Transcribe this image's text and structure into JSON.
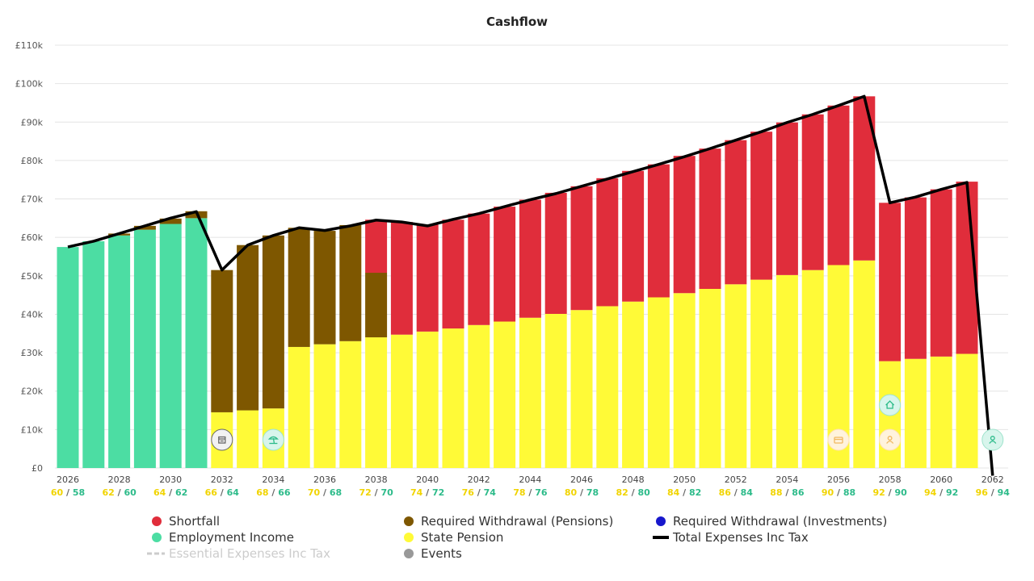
{
  "chart_data": {
    "type": "bar",
    "title": "Cashflow",
    "stacked": true,
    "ylim": [
      0,
      110000
    ],
    "y_ticks": [
      0,
      10000,
      20000,
      30000,
      40000,
      50000,
      60000,
      70000,
      80000,
      90000,
      100000,
      110000
    ],
    "y_tick_labels": [
      "£0",
      "£10k",
      "£20k",
      "£30k",
      "£40k",
      "£50k",
      "£60k",
      "£70k",
      "£80k",
      "£90k",
      "£100k",
      "£110k"
    ],
    "x": [
      2026,
      2027,
      2028,
      2029,
      2030,
      2031,
      2032,
      2033,
      2034,
      2035,
      2036,
      2037,
      2038,
      2039,
      2040,
      2041,
      2042,
      2043,
      2044,
      2045,
      2046,
      2047,
      2048,
      2049,
      2050,
      2051,
      2052,
      2053,
      2054,
      2055,
      2056,
      2057,
      2058,
      2059,
      2060,
      2061,
      2062
    ],
    "x_tick_labels": [
      {
        "year": "2026",
        "age1": "60",
        "age2": "58"
      },
      {
        "year": "2028",
        "age1": "62",
        "age2": "60"
      },
      {
        "year": "2030",
        "age1": "64",
        "age2": "62"
      },
      {
        "year": "2032",
        "age1": "66",
        "age2": "64"
      },
      {
        "year": "2034",
        "age1": "68",
        "age2": "66"
      },
      {
        "year": "2036",
        "age1": "70",
        "age2": "68"
      },
      {
        "year": "2038",
        "age1": "72",
        "age2": "70"
      },
      {
        "year": "2040",
        "age1": "74",
        "age2": "72"
      },
      {
        "year": "2042",
        "age1": "76",
        "age2": "74"
      },
      {
        "year": "2044",
        "age1": "78",
        "age2": "76"
      },
      {
        "year": "2046",
        "age1": "80",
        "age2": "78"
      },
      {
        "year": "2048",
        "age1": "82",
        "age2": "80"
      },
      {
        "year": "2050",
        "age1": "84",
        "age2": "82"
      },
      {
        "year": "2052",
        "age1": "86",
        "age2": "84"
      },
      {
        "year": "2054",
        "age1": "88",
        "age2": "86"
      },
      {
        "year": "2056",
        "age1": "90",
        "age2": "88"
      },
      {
        "year": "2058",
        "age1": "92",
        "age2": "90"
      },
      {
        "year": "2060",
        "age1": "94",
        "age2": "92"
      },
      {
        "year": "2062",
        "age1": "96",
        "age2": "94"
      }
    ],
    "age_separator": "/",
    "series": [
      {
        "name": "Employment Income",
        "color": "#4cdda3",
        "values": [
          57500,
          59000,
          60500,
          62000,
          63500,
          65000,
          0,
          0,
          0,
          0,
          0,
          0,
          0,
          0,
          0,
          0,
          0,
          0,
          0,
          0,
          0,
          0,
          0,
          0,
          0,
          0,
          0,
          0,
          0,
          0,
          0,
          0,
          0,
          0,
          0,
          0,
          0
        ]
      },
      {
        "name": "State Pension",
        "color": "#fffa37",
        "values": [
          0,
          0,
          0,
          0,
          0,
          0,
          14500,
          15000,
          15500,
          31500,
          32200,
          33000,
          34000,
          34700,
          35500,
          36300,
          37200,
          38100,
          39100,
          40100,
          41100,
          42100,
          43300,
          44400,
          45500,
          46600,
          47800,
          49000,
          50200,
          51500,
          52800,
          54000,
          27800,
          28400,
          29000,
          29700,
          0
        ]
      },
      {
        "name": "Required Withdrawal (Pensions)",
        "color": "#7e5700",
        "values": [
          0,
          0,
          500,
          1000,
          1400,
          1800,
          37000,
          43000,
          45000,
          31000,
          29500,
          30200,
          16800,
          0,
          0,
          0,
          0,
          0,
          0,
          0,
          0,
          0,
          0,
          0,
          0,
          0,
          0,
          0,
          0,
          0,
          0,
          0,
          0,
          0,
          0,
          0,
          0
        ]
      },
      {
        "name": "Shortfall",
        "color": "#e02d3b",
        "values": [
          0,
          0,
          0,
          0,
          0,
          0,
          0,
          0,
          0,
          0,
          0,
          0,
          13800,
          29300,
          27800,
          28300,
          29000,
          29900,
          30700,
          31500,
          32200,
          33300,
          34000,
          34600,
          35700,
          36500,
          37500,
          38500,
          39700,
          40500,
          41500,
          42700,
          41200,
          42000,
          43500,
          44800,
          0
        ]
      },
      {
        "name": "Required Withdrawal (Investments)",
        "color": "#1717cc",
        "values": [
          0,
          0,
          0,
          0,
          0,
          0,
          0,
          0,
          0,
          0,
          0,
          0,
          0,
          0,
          0,
          0,
          0,
          0,
          0,
          0,
          0,
          0,
          0,
          0,
          0,
          0,
          0,
          0,
          0,
          0,
          0,
          0,
          0,
          0,
          0,
          0,
          0
        ]
      }
    ],
    "line_series": {
      "name": "Total Expenses Inc Tax",
      "color": "#000000",
      "values": [
        57500,
        59000,
        61000,
        63000,
        65000,
        66700,
        51500,
        58000,
        60500,
        62500,
        61800,
        63000,
        64500,
        64000,
        63000,
        64700,
        66200,
        68000,
        69800,
        71400,
        73300,
        75200,
        77100,
        79000,
        81000,
        83100,
        85300,
        87500,
        89900,
        92000,
        94300,
        96700,
        69000,
        70500,
        72500,
        74300,
        -2000
      ]
    },
    "events": [
      {
        "x": 2032,
        "icon": "calendar-icon",
        "fill": "#f2f2f2",
        "stroke": "#666666",
        "color": "#666666"
      },
      {
        "x": 2034,
        "icon": "beach-icon",
        "fill": "#d8f5ec",
        "stroke": "#9ee3cc",
        "color": "#2dbb8a"
      },
      {
        "x": 2056,
        "icon": "wallet-icon",
        "fill": "#fff3dc",
        "stroke": "#ffe0b3",
        "color": "#f0b860"
      },
      {
        "x": 2058,
        "icon": "person-icon",
        "fill": "#fff3dc",
        "stroke": "#ffe0b3",
        "color": "#f0b860"
      },
      {
        "x": 2058,
        "icon": "house-icon",
        "fill": "#d8f5ec",
        "stroke": "#9ee3cc",
        "color": "#2dbb8a",
        "elevated": true
      },
      {
        "x": 2062,
        "icon": "person-icon",
        "fill": "#d8f5ec",
        "stroke": "#9ee3cc",
        "color": "#2dbb8a"
      }
    ],
    "legend": {
      "placement": "bottom",
      "items": [
        {
          "label": "Shortfall",
          "marker": "dot",
          "color": "#e02d3b"
        },
        {
          "label": "Required Withdrawal (Pensions)",
          "marker": "dot",
          "color": "#7e5700"
        },
        {
          "label": "Required Withdrawal (Investments)",
          "marker": "dot",
          "color": "#1717cc"
        },
        {
          "label": "Employment Income",
          "marker": "dot",
          "color": "#4cdda3"
        },
        {
          "label": "State Pension",
          "marker": "dot",
          "color": "#fffa37"
        },
        {
          "label": "Total Expenses Inc Tax",
          "marker": "line",
          "color": "#000000"
        },
        {
          "label": "Essential Expenses Inc Tax",
          "marker": "dashed",
          "color": "#cccccc",
          "muted": true
        },
        {
          "label": "Events",
          "marker": "dot",
          "color": "#999999"
        }
      ]
    },
    "grid": true
  }
}
